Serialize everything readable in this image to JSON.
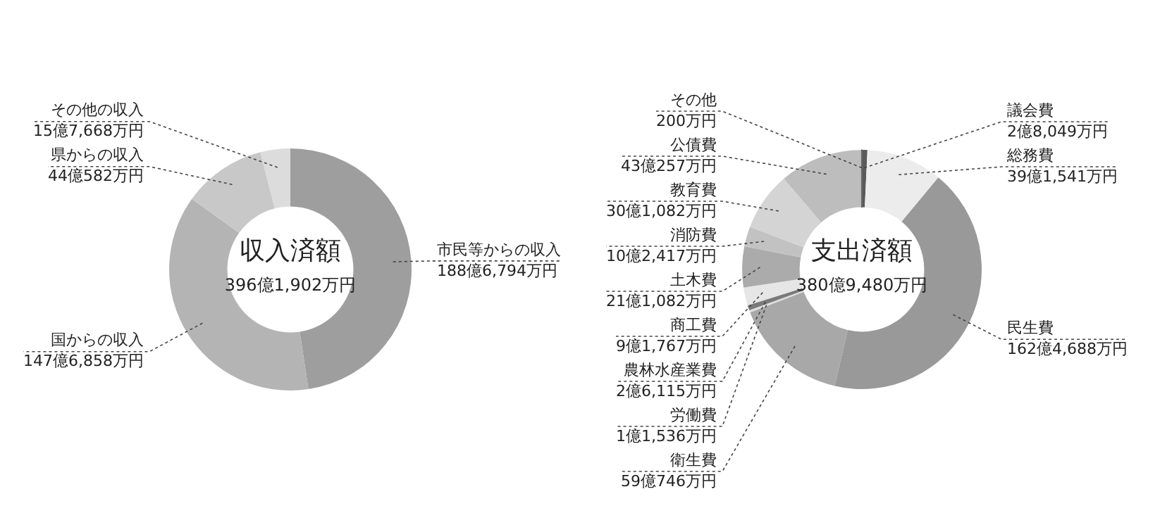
{
  "chart_data": [
    {
      "type": "donut",
      "title": "収入済額",
      "legend": false,
      "categories": [
        "市民等からの収入",
        "国からの収入",
        "県からの収入",
        "その他の収入"
      ],
      "values": [
        47.62,
        37.28,
        11.12,
        3.98
      ],
      "annotations": [
        "396億1,902万円",
        {
          "text": "188億6,794万円",
          "x": "市民等からの収入"
        },
        {
          "text": "147億6,858万円",
          "x": "国からの収入"
        },
        {
          "text": "44億582万円",
          "x": "県からの収入"
        },
        {
          "text": "15億7,668万円",
          "x": "その他の収入"
        }
      ],
      "colors": [
        "#9e9e9e",
        "#b4b4b4",
        "#c8c8c8",
        "#dcdcdc"
      ]
    },
    {
      "type": "donut",
      "title": "支出済額",
      "legend": false,
      "categories": [
        "議会費",
        "総務費",
        "民生費",
        "衛生費",
        "労働費",
        "農林水産業費",
        "商工費",
        "土木費",
        "消防費",
        "教育費",
        "公債費",
        "その他"
      ],
      "values": [
        0.74,
        10.28,
        42.64,
        15.51,
        0.3,
        0.69,
        2.41,
        5.54,
        2.69,
        7.9,
        11.29,
        0.01
      ],
      "annotations": [
        "380億9,480万円",
        {
          "text": "2億8,049万円",
          "x": "議会費"
        },
        {
          "text": "39億1,541万円",
          "x": "総務費"
        },
        {
          "text": "162億4,688万円",
          "x": "民生費"
        },
        {
          "text": "59億746万円",
          "x": "衛生費"
        },
        {
          "text": "1億1,536万円",
          "x": "労働費"
        },
        {
          "text": "2億6,115万円",
          "x": "農林水産業費"
        },
        {
          "text": "9億1,767万円",
          "x": "商工費"
        },
        {
          "text": "21億1,082万円",
          "x": "土木費"
        },
        {
          "text": "10億2,417万円",
          "x": "消防費"
        },
        {
          "text": "30億1,082万円",
          "x": "教育費"
        },
        {
          "text": "43億257万円",
          "x": "公債費"
        },
        {
          "text": "200万円",
          "x": "その他"
        }
      ],
      "colors": [
        "#5a5a5a",
        "#ececec",
        "#999999",
        "#a8a8a8",
        "#dedede",
        "#7a7a7a",
        "#e6e6e6",
        "#ababab",
        "#c2c2c2",
        "#d4d4d4",
        "#bdbdbd",
        "#666666"
      ]
    }
  ]
}
